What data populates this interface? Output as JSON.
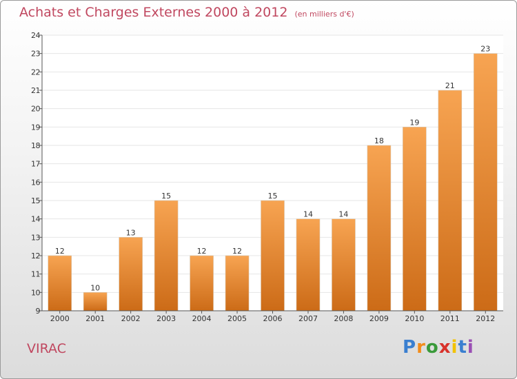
{
  "header": {
    "title": "Achats et Charges Externes 2000 à 2012",
    "unit": "(en milliers d'€)"
  },
  "footer": {
    "place": "VIRAC",
    "logo": {
      "text": "Proxiti",
      "colors": [
        "#3a7fd0",
        "#f28c1a",
        "#3a9a3a",
        "#d8322b",
        "#f2c200",
        "#3a7fd0",
        "#9a4fb4"
      ]
    }
  },
  "colors": {
    "bar_top": "#f7a452",
    "bar_bottom": "#cc6b17",
    "title": "#c0475f",
    "grid": "#e6e6e6"
  },
  "chart_data": {
    "type": "bar",
    "title": "Achats et Charges Externes 2000 à 2012",
    "subtitle": "(en milliers d'€)",
    "xlabel": "",
    "ylabel": "",
    "categories": [
      "2000",
      "2001",
      "2002",
      "2003",
      "2004",
      "2005",
      "2006",
      "2007",
      "2008",
      "2009",
      "2010",
      "2011",
      "2012"
    ],
    "values": [
      12,
      10,
      13,
      15,
      12,
      12,
      15,
      14,
      14,
      18,
      19,
      21,
      23
    ],
    "data_labels": [
      "12",
      "10",
      "13",
      "15",
      "12",
      "12",
      "15",
      "14",
      "14",
      "18",
      "19",
      "21",
      "23"
    ],
    "ylim": [
      9,
      24
    ],
    "yticks": [
      9,
      10,
      11,
      12,
      13,
      14,
      15,
      16,
      17,
      18,
      19,
      20,
      21,
      22,
      23,
      24
    ],
    "grid": true
  }
}
